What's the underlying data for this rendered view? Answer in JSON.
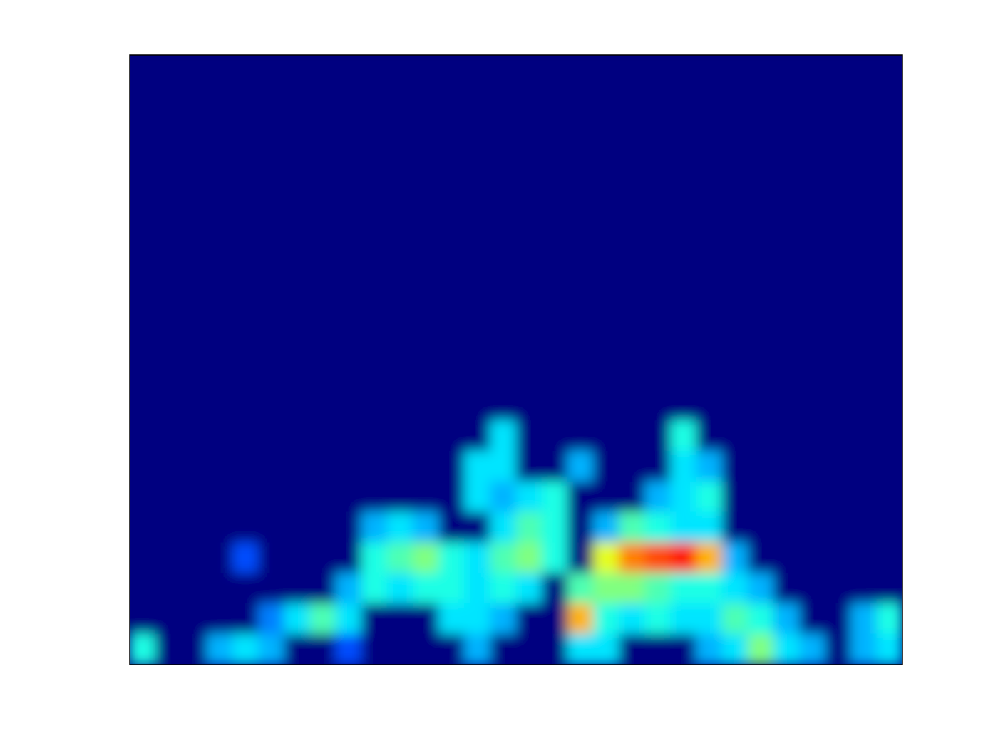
{
  "chart_data": {
    "type": "heatmap",
    "colormap": "jet",
    "zlim": [
      0,
      1
    ],
    "values": [
      [
        0,
        0,
        0,
        0,
        0,
        0,
        0,
        0,
        0,
        0,
        0,
        0,
        0,
        0,
        0,
        0,
        0,
        0,
        0,
        0,
        0,
        0,
        0,
        0,
        0,
        0,
        0,
        0,
        0,
        0
      ],
      [
        0,
        0,
        0,
        0,
        0,
        0,
        0,
        0,
        0,
        0,
        0,
        0,
        0,
        0,
        0,
        0,
        0,
        0,
        0,
        0,
        0,
        0,
        0,
        0,
        0,
        0,
        0,
        0,
        0,
        0
      ],
      [
        0,
        0,
        0,
        0,
        0,
        0,
        0,
        0,
        0,
        0,
        0,
        0,
        0,
        0,
        0,
        0,
        0,
        0,
        0,
        0,
        0,
        0,
        0,
        0,
        0,
        0,
        0,
        0,
        0,
        0
      ],
      [
        0,
        0,
        0,
        0,
        0,
        0,
        0,
        0,
        0,
        0,
        0,
        0,
        0,
        0,
        0,
        0,
        0,
        0,
        0,
        0,
        0,
        0,
        0,
        0,
        0,
        0,
        0,
        0,
        0,
        0
      ],
      [
        0,
        0,
        0,
        0,
        0,
        0,
        0,
        0,
        0,
        0,
        0,
        0,
        0,
        0,
        0,
        0,
        0,
        0,
        0,
        0,
        0,
        0,
        0,
        0,
        0,
        0,
        0,
        0,
        0,
        0
      ],
      [
        0,
        0,
        0,
        0,
        0,
        0,
        0,
        0,
        0,
        0,
        0,
        0,
        0,
        0,
        0,
        0,
        0,
        0,
        0,
        0,
        0,
        0,
        0,
        0,
        0,
        0,
        0,
        0,
        0,
        0
      ],
      [
        0,
        0,
        0,
        0,
        0,
        0,
        0,
        0,
        0,
        0,
        0,
        0,
        0,
        0,
        0,
        0,
        0,
        0,
        0,
        0,
        0,
        0,
        0,
        0,
        0,
        0,
        0,
        0,
        0,
        0
      ],
      [
        0,
        0,
        0,
        0,
        0,
        0,
        0,
        0,
        0,
        0,
        0,
        0,
        0,
        0,
        0,
        0,
        0,
        0,
        0,
        0,
        0,
        0,
        0,
        0,
        0,
        0,
        0,
        0,
        0,
        0
      ],
      [
        0,
        0,
        0,
        0,
        0,
        0,
        0,
        0,
        0,
        0,
        0,
        0,
        0,
        0,
        0,
        0,
        0,
        0,
        0,
        0,
        0,
        0,
        0,
        0,
        0,
        0,
        0,
        0,
        0,
        0
      ],
      [
        0,
        0,
        0,
        0,
        0,
        0,
        0,
        0,
        0,
        0,
        0,
        0,
        0,
        0,
        0,
        0,
        0,
        0,
        0,
        0,
        0,
        0,
        0,
        0,
        0,
        0,
        0,
        0,
        0,
        0
      ],
      [
        0,
        0,
        0,
        0,
        0,
        0,
        0,
        0,
        0,
        0,
        0,
        0,
        0,
        0,
        0,
        0,
        0,
        0,
        0,
        0,
        0,
        0,
        0,
        0,
        0,
        0,
        0,
        0,
        0,
        0
      ],
      [
        0,
        0,
        0,
        0,
        0,
        0,
        0,
        0,
        0,
        0,
        0,
        0,
        0,
        0,
        0,
        0,
        0,
        0,
        0,
        0,
        0,
        0,
        0,
        0,
        0,
        0,
        0,
        0,
        0,
        0
      ],
      [
        0,
        0,
        0,
        0,
        0,
        0,
        0,
        0,
        0,
        0,
        0,
        0,
        0,
        0,
        0.35,
        0,
        0,
        0,
        0,
        0,
        0,
        0.4,
        0,
        0,
        0,
        0,
        0,
        0,
        0,
        0
      ],
      [
        0,
        0,
        0,
        0,
        0,
        0,
        0,
        0,
        0,
        0,
        0,
        0,
        0,
        0.35,
        0.35,
        0,
        0,
        0.3,
        0,
        0,
        0,
        0.35,
        0.3,
        0,
        0,
        0,
        0,
        0,
        0,
        0
      ],
      [
        0,
        0,
        0,
        0,
        0,
        0,
        0,
        0,
        0,
        0,
        0,
        0,
        0,
        0.35,
        0.3,
        0.35,
        0.4,
        0,
        0,
        0,
        0.3,
        0.35,
        0.4,
        0,
        0,
        0,
        0,
        0,
        0,
        0
      ],
      [
        0,
        0,
        0,
        0,
        0,
        0,
        0,
        0,
        0,
        0.3,
        0.35,
        0.3,
        0,
        0,
        0.35,
        0.45,
        0.4,
        0,
        0.3,
        0.45,
        0.4,
        0.35,
        0.35,
        0,
        0,
        0,
        0,
        0,
        0,
        0
      ],
      [
        0,
        0,
        0,
        0,
        0.2,
        0,
        0,
        0,
        0,
        0.4,
        0.45,
        0.5,
        0.4,
        0.35,
        0.45,
        0.5,
        0.4,
        0,
        0.6,
        0.75,
        0.8,
        0.85,
        0.7,
        0.3,
        0,
        0,
        0,
        0,
        0,
        0
      ],
      [
        0,
        0,
        0,
        0,
        0,
        0,
        0,
        0,
        0.3,
        0.4,
        0.35,
        0.4,
        0.4,
        0.35,
        0.4,
        0.35,
        0,
        0.45,
        0.5,
        0.5,
        0.45,
        0.4,
        0.4,
        0.35,
        0.3,
        0,
        0,
        0,
        0,
        0
      ],
      [
        0,
        0,
        0,
        0,
        0,
        0.25,
        0.35,
        0.45,
        0.35,
        0,
        0,
        0,
        0.35,
        0.35,
        0.3,
        0,
        0,
        0.7,
        0.4,
        0.35,
        0.4,
        0.35,
        0.35,
        0.45,
        0.4,
        0.3,
        0,
        0,
        0.3,
        0.4
      ],
      [
        0.4,
        0,
        0,
        0.3,
        0.35,
        0.3,
        0,
        0,
        0.2,
        0,
        0,
        0,
        0,
        0.3,
        0,
        0,
        0,
        0.35,
        0.35,
        0,
        0,
        0,
        0.3,
        0.35,
        0.5,
        0.35,
        0.3,
        0,
        0.3,
        0.35
      ]
    ]
  }
}
